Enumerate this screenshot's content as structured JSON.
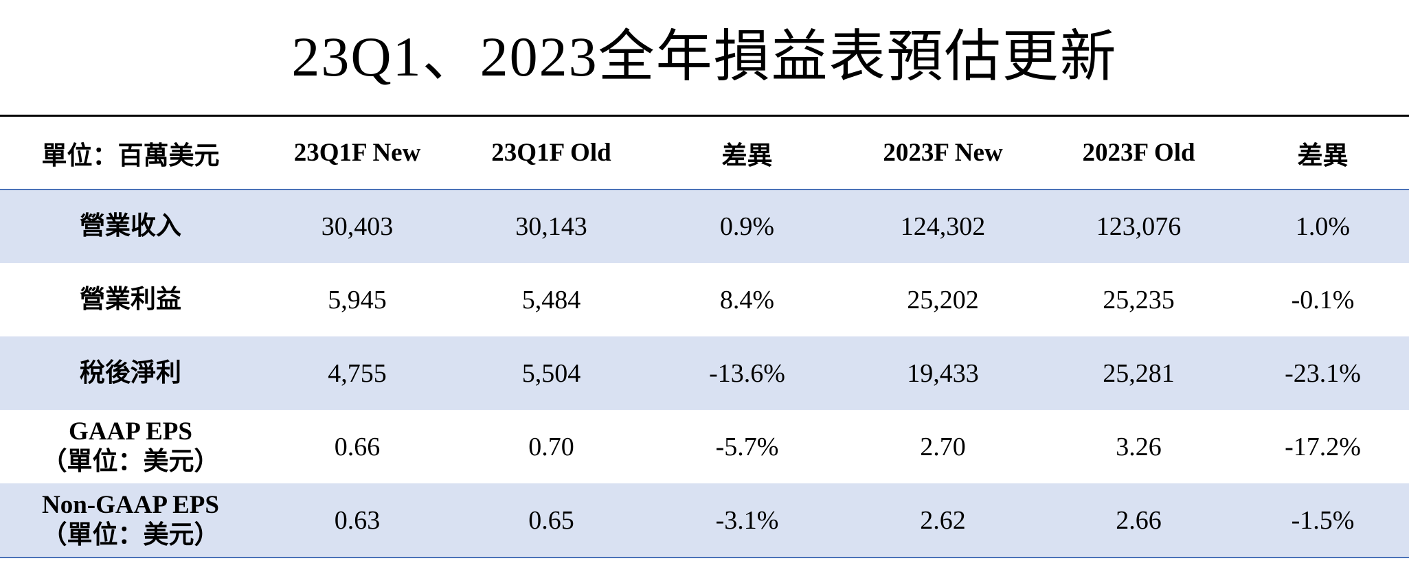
{
  "title": "23Q1、2023全年損益表預估更新",
  "table": {
    "headers": [
      "單位：百萬美元",
      "23Q1F New",
      "23Q1F Old",
      "差異",
      "2023F New",
      "2023F Old",
      "差異"
    ],
    "rows": [
      {
        "label": "營業收入",
        "sublabel": "",
        "values": [
          "30,403",
          "30,143",
          "0.9%",
          "124,302",
          "123,076",
          "1.0%"
        ]
      },
      {
        "label": "營業利益",
        "sublabel": "",
        "values": [
          "5,945",
          "5,484",
          "8.4%",
          "25,202",
          "25,235",
          "-0.1%"
        ]
      },
      {
        "label": "稅後淨利",
        "sublabel": "",
        "values": [
          "4,755",
          "5,504",
          "-13.6%",
          "19,433",
          "25,281",
          "-23.1%"
        ]
      },
      {
        "label": "GAAP EPS",
        "sublabel": "（單位：美元）",
        "values": [
          "0.66",
          "0.70",
          "-5.7%",
          "2.70",
          "3.26",
          "-17.2%"
        ]
      },
      {
        "label": "Non-GAAP EPS",
        "sublabel": "（單位：美元）",
        "values": [
          "0.63",
          "0.65",
          "-3.1%",
          "2.62",
          "2.66",
          "-1.5%"
        ]
      }
    ]
  },
  "colors": {
    "row_shading": "#d9e1f2",
    "rule_blue": "#4a72b8",
    "rule_black": "#000000"
  }
}
